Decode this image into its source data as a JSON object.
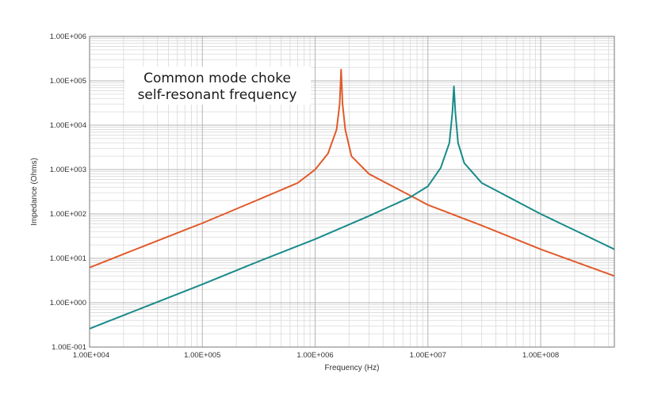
{
  "chart_data": {
    "type": "line",
    "title": "",
    "xlabel": "Frequency (Hz)",
    "ylabel": "Impedance (Ohms)",
    "x_scale": "log",
    "y_scale": "log",
    "xlim": [
      10000,
      450000000
    ],
    "ylim": [
      0.1,
      1000000
    ],
    "x_ticks": [
      {
        "value": 10000,
        "label": "1.00E+004"
      },
      {
        "value": 100000,
        "label": "1.00E+005"
      },
      {
        "value": 1000000,
        "label": "1.00E+006"
      },
      {
        "value": 10000000,
        "label": "1.00E+007"
      },
      {
        "value": 100000000,
        "label": "1.00E+008"
      }
    ],
    "y_ticks": [
      {
        "value": 0.1,
        "label": "1.00E-001"
      },
      {
        "value": 1,
        "label": "1.00E+000"
      },
      {
        "value": 10,
        "label": "1.00E+001"
      },
      {
        "value": 100,
        "label": "1.00E+002"
      },
      {
        "value": 1000,
        "label": "1.00E+003"
      },
      {
        "value": 10000,
        "label": "1.00E+004"
      },
      {
        "value": 100000,
        "label": "1.00E+005"
      },
      {
        "value": 1000000,
        "label": "1.00E+006"
      }
    ],
    "grid": true,
    "annotations": [
      {
        "lines": [
          "Common mode choke",
          "self-resonant frequency"
        ]
      }
    ],
    "series": [
      {
        "color": "#e05a2b",
        "x": [
          10000,
          30000,
          100000,
          300000,
          700000,
          1000000,
          1300000,
          1550000,
          1650000,
          1700000,
          1750000,
          1850000,
          2100000,
          3000000,
          10000000,
          30000000,
          100000000,
          450000000
        ],
        "y": [
          6.2,
          18.7,
          62,
          200,
          500,
          1000,
          2300,
          8000,
          30000,
          180000,
          30000,
          8000,
          2000,
          800,
          160,
          55,
          16,
          4
        ]
      },
      {
        "color": "#1a8a8a",
        "x": [
          10000,
          30000,
          100000,
          300000,
          1000000,
          3000000,
          7000000,
          10000000,
          13000000,
          15500000,
          16500000,
          17000000,
          17500000,
          18500000,
          21000000,
          30000000,
          100000000,
          450000000
        ],
        "y": [
          0.26,
          0.78,
          2.6,
          8.1,
          27,
          90,
          240,
          420,
          1100,
          4000,
          20000,
          75000,
          20000,
          4000,
          1400,
          500,
          100,
          16
        ]
      }
    ]
  }
}
